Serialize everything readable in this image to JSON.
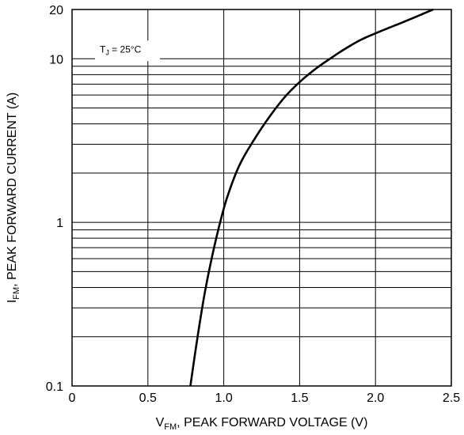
{
  "chart_data": {
    "type": "line",
    "title": "",
    "xlabel": "V_FM, PEAK FORWARD VOLTAGE (V)",
    "xlabel_parts": {
      "main": "V",
      "sub": "FM",
      "rest": ", PEAK FORWARD VOLTAGE (V)"
    },
    "ylabel": "I_FM, PEAK FORWARD CURRENT (A)",
    "ylabel_parts": {
      "main": "I",
      "sub": "FM",
      "rest": ", PEAK FORWARD CURRENT (A)"
    },
    "xlim": [
      0,
      2.5
    ],
    "ylim": [
      0.1,
      20
    ],
    "yscale": "log",
    "grid": true,
    "x_ticks": [
      0,
      0.5,
      1.0,
      1.5,
      2.0,
      2.5
    ],
    "x_tick_labels": [
      "0",
      "0.5",
      "1.0",
      "1.5",
      "2.0",
      "2.5"
    ],
    "y_ticks": [
      0.1,
      1,
      10,
      20
    ],
    "y_tick_labels": [
      "0.1",
      "1",
      "10",
      "20"
    ],
    "y_minor_grid": [
      0.2,
      0.3,
      0.4,
      0.5,
      0.6,
      0.7,
      0.8,
      0.9,
      2,
      3,
      4,
      5,
      6,
      7,
      8,
      9
    ],
    "annotation": {
      "main": "T",
      "sub": "J",
      "rest": " = 25°C"
    },
    "series": [
      {
        "color": "#000000",
        "x": [
          0.78,
          0.82,
          0.87,
          0.92,
          0.97,
          1.02,
          1.1,
          1.2,
          1.3,
          1.4,
          1.5,
          1.6,
          1.7,
          1.8,
          1.9,
          2.0,
          2.1,
          2.2,
          2.3,
          2.38
        ],
        "y": [
          0.1,
          0.18,
          0.35,
          0.6,
          0.95,
          1.4,
          2.2,
          3.2,
          4.4,
          5.8,
          7.2,
          8.6,
          10.0,
          11.5,
          13.0,
          14.3,
          15.6,
          17.0,
          18.6,
          20.0
        ]
      }
    ]
  }
}
